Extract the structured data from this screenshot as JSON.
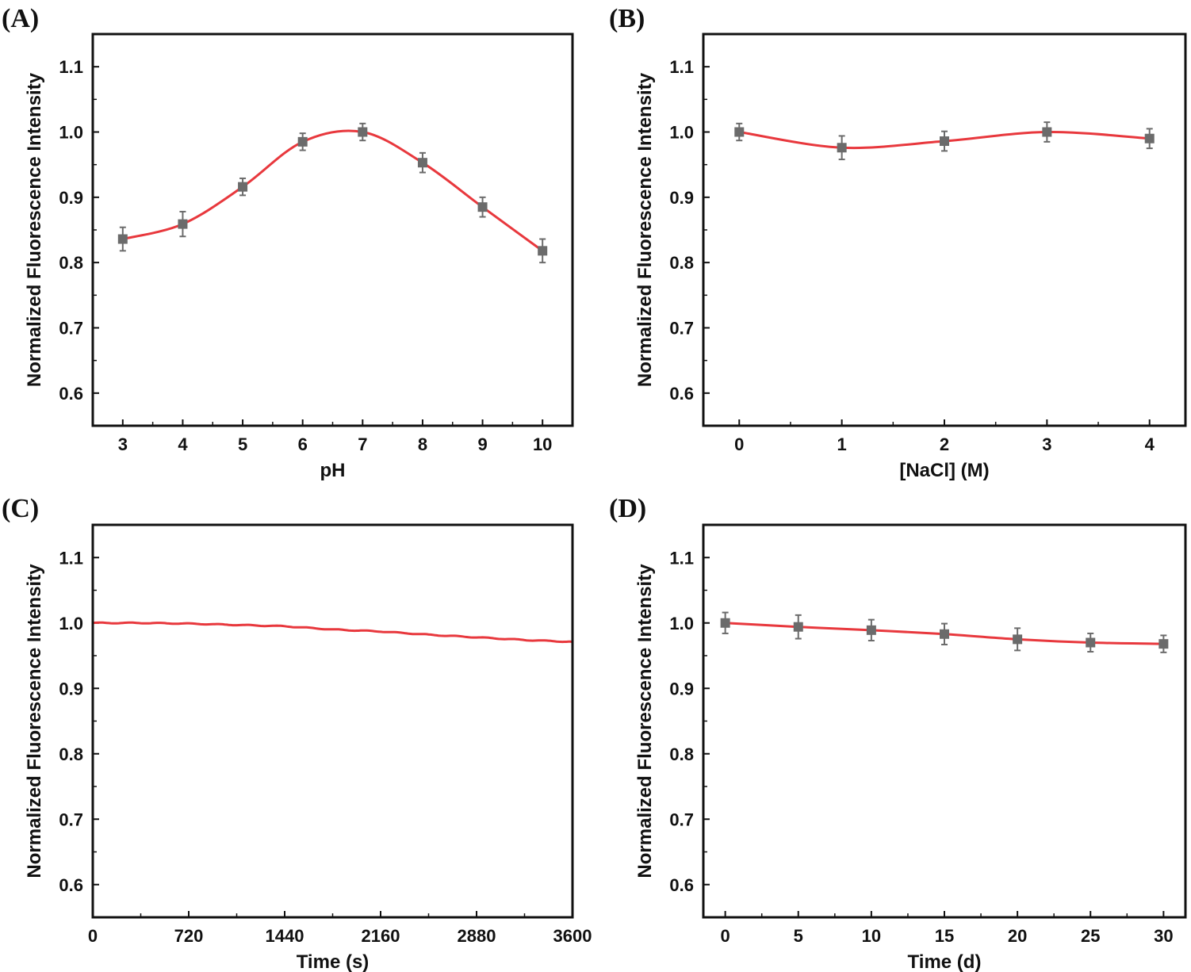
{
  "chart_data": [
    {
      "panel": "(A)",
      "type": "line",
      "xlabel": "pH",
      "ylabel": "Normalized Fluorescence Intensity",
      "xlim": [
        2.5,
        10.5
      ],
      "ylim": [
        0.55,
        1.15
      ],
      "xticks": [
        3,
        4,
        5,
        6,
        7,
        8,
        9,
        10
      ],
      "xticklabels": [
        "3",
        "4",
        "5",
        "6",
        "7",
        "8",
        "9",
        "10"
      ],
      "yticks": [
        0.6,
        0.7,
        0.8,
        0.9,
        1.0,
        1.1
      ],
      "yticklabels": [
        "0.6",
        "0.7",
        "0.8",
        "0.9",
        "1.0",
        "1.1"
      ],
      "x": [
        3,
        4,
        5,
        6,
        7,
        8,
        9,
        10
      ],
      "y": [
        0.836,
        0.859,
        0.916,
        0.985,
        1.0,
        0.953,
        0.885,
        0.818
      ],
      "yerr": [
        0.018,
        0.019,
        0.013,
        0.013,
        0.013,
        0.015,
        0.015,
        0.018
      ],
      "line_color": "#e8383d",
      "marker_color": "#6b6b6b"
    },
    {
      "panel": "(B)",
      "type": "line",
      "xlabel": "[NaCl] (M)",
      "ylabel": "Normalized Fluorescence Intensity",
      "xlim": [
        -0.35,
        4.35
      ],
      "ylim": [
        0.55,
        1.15
      ],
      "xticks": [
        0,
        1,
        2,
        3,
        4
      ],
      "xticklabels": [
        "0",
        "1",
        "2",
        "3",
        "4"
      ],
      "yticks": [
        0.6,
        0.7,
        0.8,
        0.9,
        1.0,
        1.1
      ],
      "yticklabels": [
        "0.6",
        "0.7",
        "0.8",
        "0.9",
        "1.0",
        "1.1"
      ],
      "x": [
        0,
        1,
        2,
        3,
        4
      ],
      "y": [
        1.0,
        0.976,
        0.986,
        1.0,
        0.99
      ],
      "yerr": [
        0.013,
        0.018,
        0.015,
        0.015,
        0.015
      ],
      "line_color": "#e8383d",
      "marker_color": "#6b6b6b"
    },
    {
      "panel": "(C)",
      "type": "line",
      "xlabel": "Time (s)",
      "ylabel": "Normalized Fluorescence Intensity",
      "xlim": [
        0,
        3600
      ],
      "ylim": [
        0.55,
        1.15
      ],
      "xticks": [
        0,
        720,
        1440,
        2160,
        2880,
        3600
      ],
      "xticklabels": [
        "0",
        "720",
        "1440",
        "2160",
        "2880",
        "3600"
      ],
      "yticks": [
        0.6,
        0.7,
        0.8,
        0.9,
        1.0,
        1.1
      ],
      "yticklabels": [
        "0.6",
        "0.7",
        "0.8",
        "0.9",
        "1.0",
        "1.1"
      ],
      "x": [
        0,
        360,
        720,
        1080,
        1440,
        1800,
        2160,
        2520,
        2880,
        3240,
        3600
      ],
      "y": [
        1.0,
        1.0,
        0.999,
        0.997,
        0.995,
        0.99,
        0.987,
        0.982,
        0.978,
        0.974,
        0.971
      ],
      "line_color": "#e8383d"
    },
    {
      "panel": "(D)",
      "type": "line",
      "xlabel": "Time (d)",
      "ylabel": "Normalized Fluorescence Intensity",
      "xlim": [
        -1.5,
        31.5
      ],
      "ylim": [
        0.55,
        1.15
      ],
      "xticks": [
        0,
        5,
        10,
        15,
        20,
        25,
        30
      ],
      "xticklabels": [
        "0",
        "5",
        "10",
        "15",
        "20",
        "25",
        "30"
      ],
      "yticks": [
        0.6,
        0.7,
        0.8,
        0.9,
        1.0,
        1.1
      ],
      "yticklabels": [
        "0.6",
        "0.7",
        "0.8",
        "0.9",
        "1.0",
        "1.1"
      ],
      "x": [
        0,
        5,
        10,
        15,
        20,
        25,
        30
      ],
      "y": [
        1.0,
        0.994,
        0.989,
        0.983,
        0.975,
        0.97,
        0.968
      ],
      "yerr": [
        0.016,
        0.018,
        0.016,
        0.016,
        0.017,
        0.014,
        0.013
      ],
      "line_color": "#e8383d",
      "marker_color": "#6b6b6b"
    }
  ]
}
